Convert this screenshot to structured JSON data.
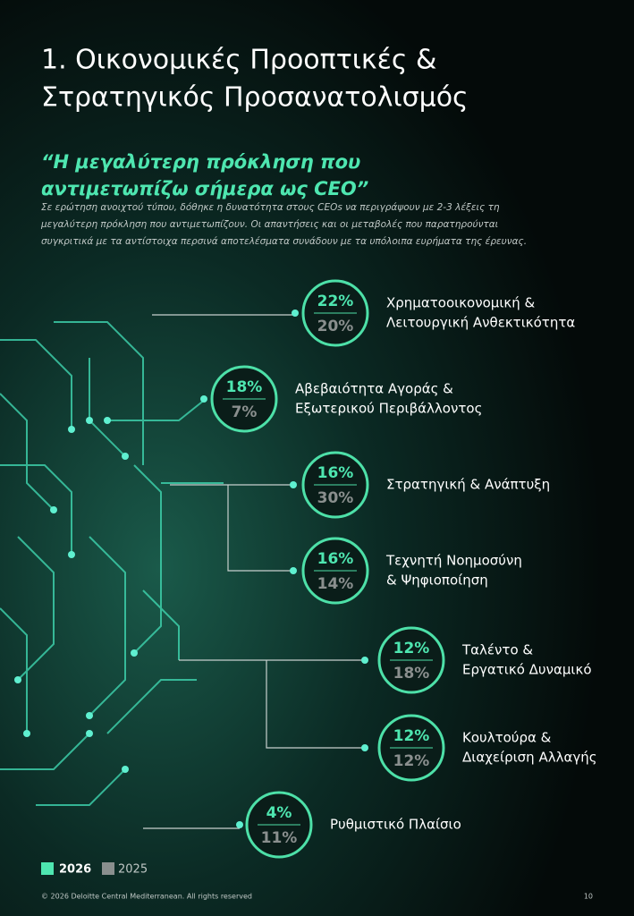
{
  "header": {
    "title_lines": [
      "1. Οικονομικές Προοπτικές &",
      "Στρατηγικός Προσανατολισμός"
    ]
  },
  "quote": {
    "lines": [
      "“Η μεγαλύτερη πρόκληση που",
      "αντιμετωπίζω σήμερα ως CEO”"
    ]
  },
  "intro": {
    "lines": [
      "Σε ερώτηση ανοιχτού τύπου, δόθηκε η δυνατότητα στους CEOs να περιγράψουν με 2-3 λέξεις τη",
      "μεγαλύτερη πρόκληση που αντιμετωπίζουν. Οι απαντήσεις και οι μεταβολές που παρατηρούνται",
      "συγκριτικά με τα αντίστοιχα περσινά αποτελέσματα συνάδουν με τα υπόλοιπα ευρήματα της έρευνας."
    ]
  },
  "items": [
    {
      "value_2026": "22%",
      "value_2025": "20%",
      "label_lines": [
        "Χρηματοοικονομική &",
        "Λειτουργική Ανθεκτικότητα"
      ]
    },
    {
      "value_2026": "18%",
      "value_2025": "7%",
      "label_lines": [
        "Αβεβαιότητα Αγοράς &",
        "Εξωτερικού Περιβάλλοντος"
      ]
    },
    {
      "value_2026": "16%",
      "value_2025": "30%",
      "label_lines": [
        "Στρατηγική & Ανάπτυξη"
      ]
    },
    {
      "value_2026": "16%",
      "value_2025": "14%",
      "label_lines": [
        "Τεχνητή Νοημοσύνη",
        "& Ψηφιοποίηση"
      ]
    },
    {
      "value_2026": "12%",
      "value_2025": "18%",
      "label_lines": [
        "Ταλέντο &",
        "Εργατικό Δυναμικό"
      ]
    },
    {
      "value_2026": "12%",
      "value_2025": "12%",
      "label_lines": [
        "Κουλτούρα &",
        "Διαχείριση Αλλαγής"
      ]
    },
    {
      "value_2026": "4%",
      "value_2025": "11%",
      "label_lines": [
        "Ρυθμιστικό Πλαίσιο"
      ]
    }
  ],
  "legend": {
    "current": "2026",
    "previous": "2025"
  },
  "footer": {
    "copyright": "© 2026 Deloitte Central Mediterranean. All rights reserved",
    "page": "10"
  }
}
